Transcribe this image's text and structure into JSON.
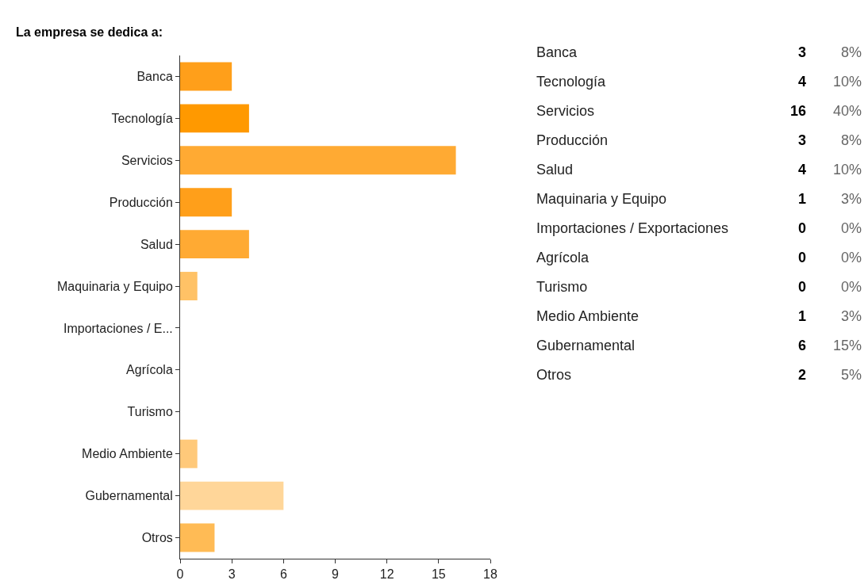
{
  "chart_data": [
    {
      "type": "bar",
      "orientation": "horizontal",
      "title": "La empresa se dedica a:",
      "categories": [
        "Banca",
        "Tecnología",
        "Servicios",
        "Producción",
        "Salud",
        "Maquinaria y Equipo",
        "Importaciones / E...",
        "Agrícola",
        "Turismo",
        "Medio Ambiente",
        "Gubernamental",
        "Otros"
      ],
      "values": [
        3,
        4,
        16,
        3,
        4,
        1,
        0,
        0,
        0,
        1,
        6,
        2
      ],
      "colors": [
        "#ff9f1a",
        "#ff9900",
        "#ffaa33",
        "#ff9f1a",
        "#ffaa33",
        "#ffc266",
        "#ffc266",
        "#ffc266",
        "#ffc266",
        "#ffc97a",
        "#ffd699",
        "#ffbb55"
      ],
      "xlim": [
        0,
        18
      ],
      "xticks": [
        0,
        3,
        6,
        9,
        12,
        15,
        18
      ]
    },
    {
      "type": "other",
      "data_labels": true,
      "categories": [
        "Banca",
        "Tecnología",
        "Servicios",
        "Producción",
        "Salud",
        "Maquinaria y Equipo",
        "Importaciones / Exportaciones",
        "Agrícola",
        "Turismo",
        "Medio Ambiente",
        "Gubernamental",
        "Otros"
      ],
      "series": [
        {
          "values": [
            3,
            4,
            16,
            3,
            4,
            1,
            0,
            0,
            0,
            1,
            6,
            2
          ]
        },
        {
          "values": [
            8,
            10,
            40,
            8,
            10,
            3,
            0,
            0,
            0,
            3,
            15,
            5
          ],
          "value_labels": [
            "8%",
            "10%",
            "40%",
            "8%",
            "10%",
            "3%",
            "0%",
            "0%",
            "0%",
            "3%",
            "15%",
            "5%"
          ]
        }
      ]
    }
  ]
}
